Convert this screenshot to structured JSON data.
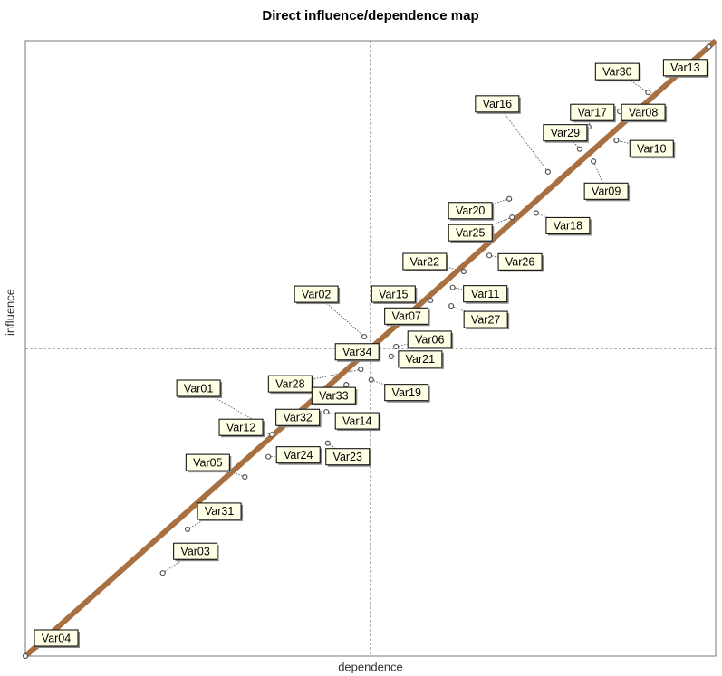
{
  "chart_data": {
    "type": "scatter",
    "title": "Direct influence/dependence map",
    "xlabel": "dependence",
    "ylabel": "influence",
    "xlim": [
      0,
      100
    ],
    "ylim": [
      0,
      100
    ],
    "midlines": true,
    "diagonal_color": "#a87040",
    "point_color": "#555555",
    "point_labels": [
      "Var13",
      "Var30",
      "Var08",
      "Var17",
      "Var10",
      "Var29",
      "Var16",
      "Var09",
      "Var20",
      "Var25",
      "Var18",
      "Var26",
      "Var22",
      "Var11",
      "Var15",
      "Var27",
      "Var07",
      "Var02",
      "Var06",
      "Var34",
      "Var21",
      "Var19",
      "Var28",
      "Var33",
      "Var14",
      "Var32",
      "Var23",
      "Var24",
      "Var12",
      "Var01",
      "Var05",
      "Var31",
      "Var03",
      "Var04"
    ],
    "x": [
      99,
      90.2,
      86.1,
      81.6,
      85.6,
      80.3,
      75.7,
      82.3,
      70.1,
      70.5,
      74,
      67.2,
      63.5,
      61.9,
      58.7,
      61.7,
      57.7,
      49.1,
      53.7,
      49.5,
      53,
      50.1,
      48.6,
      46.5,
      43.6,
      40.9,
      43.8,
      35.2,
      35.7,
      34.4,
      31.8,
      23.5,
      19.9,
      0
    ],
    "values": [
      99,
      91.6,
      88.5,
      86,
      83.8,
      82.4,
      78.7,
      80.4,
      74.3,
      71.3,
      72,
      65.1,
      62.5,
      59.9,
      57.8,
      56.9,
      55.4,
      51.9,
      50.3,
      49.3,
      48.7,
      44.9,
      46.6,
      44.1,
      39.7,
      38.2,
      34.6,
      32.4,
      36,
      37.5,
      29.1,
      20.6,
      13.5,
      0
    ]
  }
}
